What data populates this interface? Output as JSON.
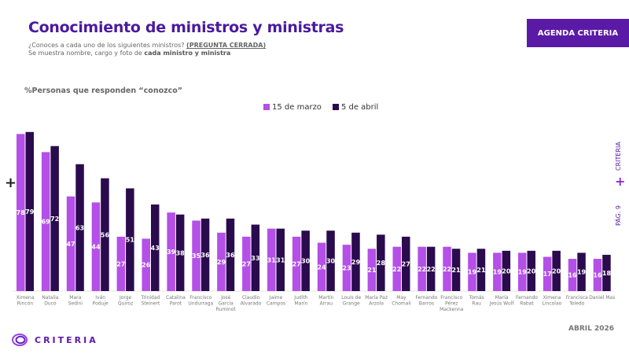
{
  "header": {
    "title": "Conocimiento de ministros y ministras",
    "question": "¿Conoces a cada uno de los siguientes ministros?",
    "question_tag": "(PREGUNTA CERRADA)",
    "note_prefix": "Se muestra nombre, cargo y foto de ",
    "note_bold": "cada ministro y ministra",
    "badge": "AGENDA CRITERIA"
  },
  "side": {
    "brand": "CRITERIA",
    "page": "PÁG. 9"
  },
  "footer": {
    "date": "ABRIL 2026",
    "logo": "CRITERIA"
  },
  "colors": {
    "series1": "#b44fe8",
    "series2": "#2a0b4d",
    "title": "#4a1a9e"
  },
  "chart_data": {
    "type": "bar",
    "ylabel": "%Personas que responden “conozco”",
    "categories": [
      "Ximena Rincón",
      "Natalia Ducó",
      "Mara Sedini",
      "Iván Poduje",
      "Jorge Quiroz",
      "Trinidad Steinert",
      "Catalina Parot",
      "Francisco Undurraga",
      "José García Ruminot",
      "Claudio Alvarado",
      "Jaime Campos",
      "Judith Marín",
      "Martín Arrau",
      "Louis de Grange",
      "María Paz Arzola",
      "May Chomali",
      "Fernando Barros",
      "Francisco Pérez Mackenna",
      "Tomás Rau",
      "María Jesús Wulf",
      "Fernando Rabat",
      "Ximena Lincolao",
      "Francisca Toledo",
      "Daniel Mas"
    ],
    "series": [
      {
        "name": "15 de marzo",
        "values": [
          78,
          69,
          47,
          44,
          27,
          26,
          39,
          35,
          29,
          27,
          31,
          27,
          24,
          23,
          21,
          22,
          22,
          22,
          19,
          19,
          19,
          17,
          16,
          16
        ]
      },
      {
        "name": "5 de abril",
        "values": [
          79,
          72,
          63,
          56,
          51,
          43,
          38,
          36,
          36,
          33,
          31,
          30,
          30,
          29,
          28,
          27,
          22,
          21,
          21,
          20,
          20,
          20,
          19,
          18
        ]
      }
    ],
    "legend": "top",
    "grid": false
  }
}
